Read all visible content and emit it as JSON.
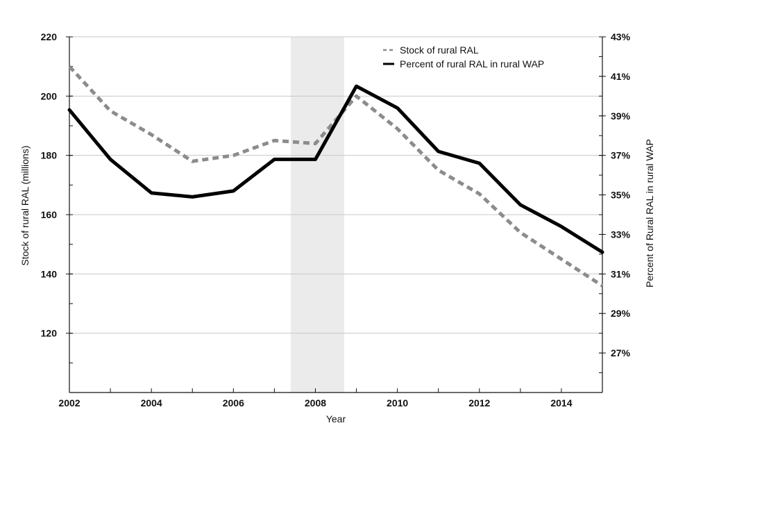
{
  "chart_data": {
    "type": "line",
    "xlabel": "Year",
    "ylabel_left": "Stock of rural RAL (millions)",
    "ylabel_right": "Percent of Rural RAL in rural WAP",
    "x_range": [
      2002,
      2015
    ],
    "ylim_left": [
      100,
      220
    ],
    "ylim_right": [
      25,
      43
    ],
    "x_ticks": [
      "2002",
      "2004",
      "2006",
      "2008",
      "2010",
      "2012",
      "2014"
    ],
    "y_ticks_left": [
      "120",
      "140",
      "160",
      "180",
      "200",
      "220"
    ],
    "y_ticks_right": [
      "27%",
      "29%",
      "31%",
      "33%",
      "35%",
      "37%",
      "39%",
      "41%",
      "43%"
    ],
    "grid": "horizontal",
    "legend_position": "top-right",
    "shaded_region": {
      "x_start": 2007.4,
      "x_end": 2008.7,
      "color": "#ebebeb"
    },
    "x": [
      2002,
      2003,
      2004,
      2005,
      2006,
      2007,
      2008,
      2009,
      2010,
      2011,
      2012,
      2013,
      2014,
      2015
    ],
    "series": [
      {
        "name": "Stock of rural RAL",
        "axis": "left",
        "style": "dashed",
        "color": "#8c8c8c",
        "values": [
          210,
          195,
          187,
          178,
          180,
          185,
          184,
          200,
          189,
          175,
          167,
          154,
          145,
          136
        ]
      },
      {
        "name": "Percent of rural RAL in rural WAP",
        "axis": "right",
        "style": "solid",
        "color": "#000000",
        "values": [
          39.3,
          36.8,
          35.1,
          34.9,
          35.2,
          36.8,
          36.8,
          40.5,
          39.4,
          37.2,
          36.6,
          34.5,
          33.4,
          32.1
        ]
      }
    ]
  }
}
